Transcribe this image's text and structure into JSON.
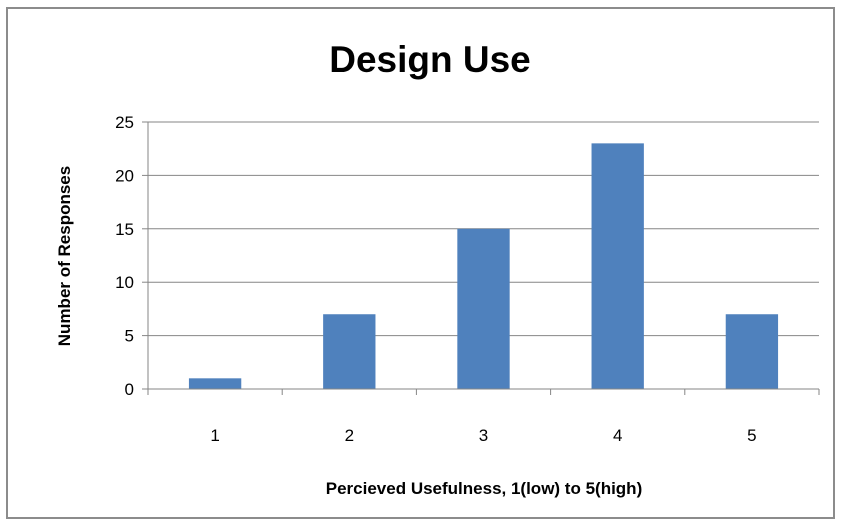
{
  "chart_data": {
    "type": "bar",
    "title": "Design Use",
    "xlabel": "Percieved Usefulness, 1(low) to 5(high)",
    "ylabel": "Number of Responses",
    "categories": [
      "1",
      "2",
      "3",
      "4",
      "5"
    ],
    "values": [
      1,
      7,
      15,
      23,
      7
    ],
    "ylim": [
      0,
      25
    ],
    "yticks": [
      "0",
      "5",
      "10",
      "15",
      "20",
      "25"
    ],
    "grid": true,
    "legend": "none",
    "bar_color": "#4f81bd",
    "grid_color": "#868686"
  }
}
